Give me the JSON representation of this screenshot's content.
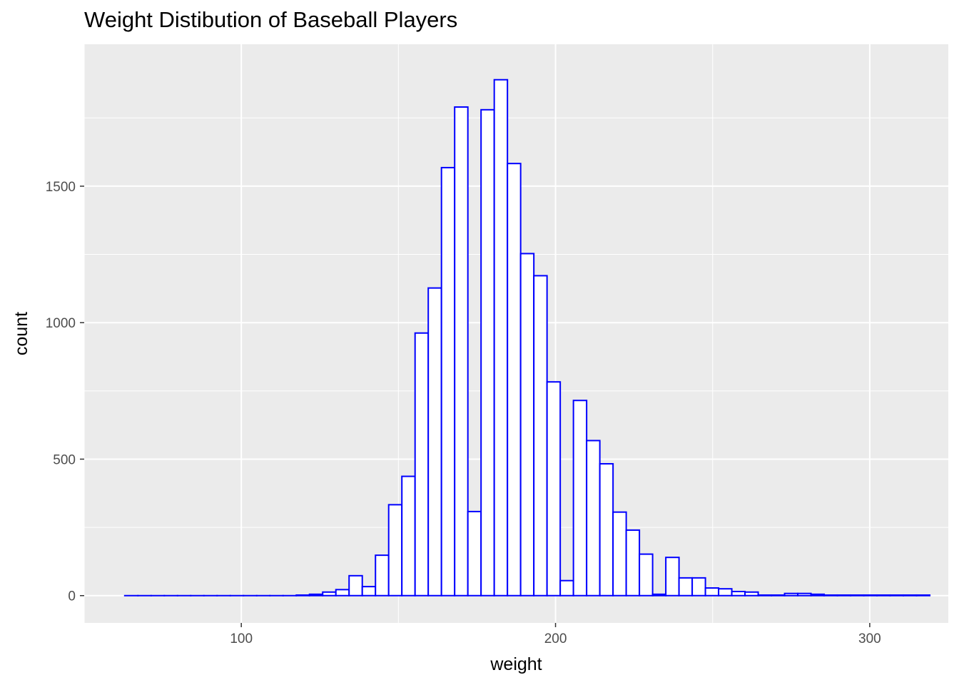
{
  "chart_data": {
    "type": "bar",
    "title": "Weight Distibution of Baseball Players",
    "xlabel": "weight",
    "ylabel": "count",
    "xlim": [
      50,
      325
    ],
    "ylim": [
      -100,
      2020
    ],
    "x_ticks": [
      100,
      200,
      300
    ],
    "x_tick_labels": [
      "100",
      "200",
      "300"
    ],
    "y_ticks": [
      0,
      500,
      1000,
      1500
    ],
    "y_tick_labels": [
      "0",
      "500",
      "1000",
      "1500"
    ],
    "grid": true,
    "legend": "none",
    "bin_width": 4.2,
    "x": [
      65,
      69.2,
      73.4,
      77.6,
      81.8,
      86,
      90.2,
      94.4,
      98.6,
      102.8,
      107,
      111.2,
      115.4,
      119.6,
      123.8,
      128,
      132.2,
      136.4,
      140.6,
      144.8,
      149,
      153.2,
      157.4,
      161.6,
      165.8,
      170,
      174.2,
      178.4,
      182.6,
      186.8,
      191,
      195.2,
      199.4,
      203.6,
      207.8,
      212,
      216.2,
      220.4,
      224.6,
      228.8,
      233,
      237.2,
      241.4,
      245.6,
      249.8,
      254,
      258.2,
      262.4,
      266.6,
      270.8,
      275,
      279.2,
      283.4,
      287.6,
      291.8,
      296,
      300.2,
      304.4,
      308.6,
      312.8,
      317
    ],
    "values": [
      0,
      0,
      0,
      0,
      0,
      0,
      0,
      0,
      0,
      0,
      0,
      0,
      0,
      2,
      5,
      13,
      22,
      73,
      33,
      148,
      333,
      437,
      962,
      1127,
      1568,
      1790,
      308,
      1780,
      1890,
      1583,
      1253,
      1172,
      783,
      55,
      715,
      568,
      483,
      306,
      240,
      152,
      5,
      140,
      65,
      65,
      28,
      25,
      15,
      13,
      2,
      2,
      8,
      8,
      5,
      2,
      2,
      2,
      2,
      2,
      2,
      2,
      2
    ],
    "colors": {
      "bar_fill": "#ffffff",
      "bar_outline": "#0000ff",
      "panel": "#ebebeb",
      "grid": "#ffffff"
    }
  }
}
